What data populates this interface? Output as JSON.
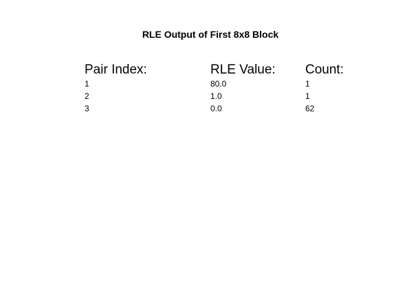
{
  "figure": {
    "title": "RLE Output of First 8x8 Block"
  },
  "table": {
    "headers": {
      "index": "Pair Index:",
      "value": "RLE Value:",
      "count": "Count:"
    },
    "rows": [
      {
        "index": "1",
        "value": "80.0",
        "count": "1"
      },
      {
        "index": "2",
        "value": "1.0",
        "count": "1"
      },
      {
        "index": "3",
        "value": "0.0",
        "count": "62"
      }
    ]
  }
}
